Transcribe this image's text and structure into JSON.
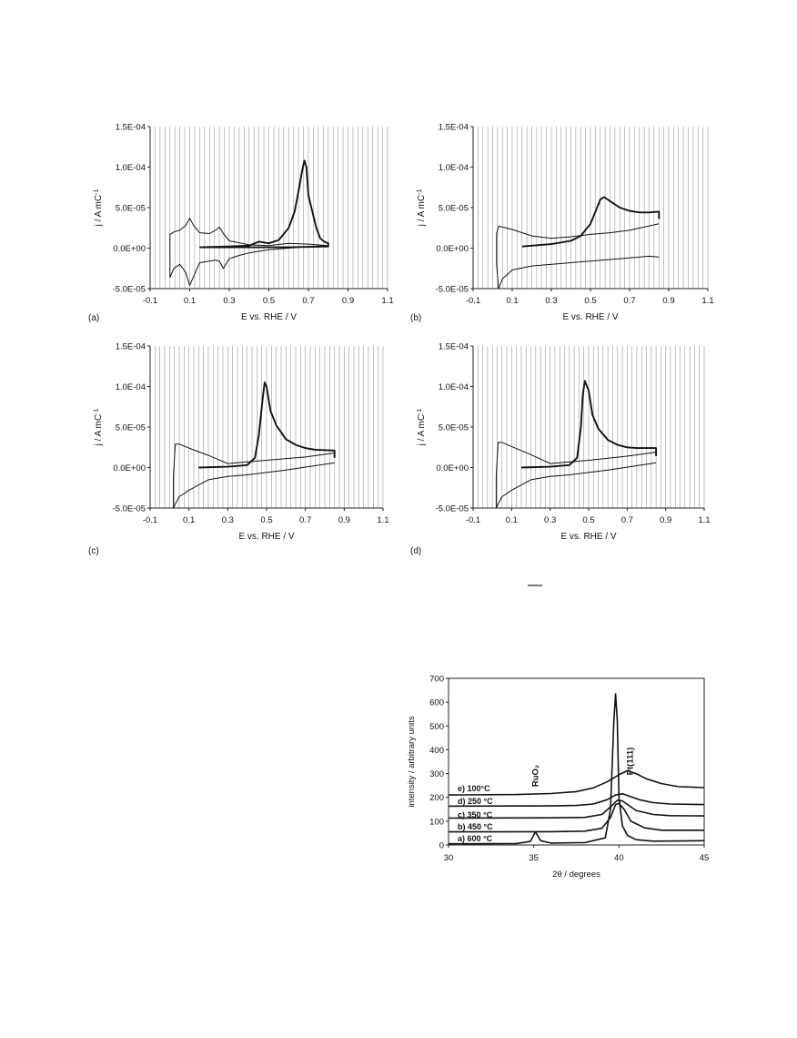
{
  "figure": {
    "overline": "—",
    "cv_panels": [
      {
        "label": "(a)",
        "xlabel": "E vs. RHE / V",
        "ylabel": "j / A mC",
        "ylabel_sup": "-1"
      },
      {
        "label": "(b)",
        "xlabel": "E vs. RHE / V",
        "ylabel": "j / A mC",
        "ylabel_sup": "-1"
      },
      {
        "label": "(c)",
        "xlabel": "E vs. RHE / V",
        "ylabel": "j / A mC",
        "ylabel_sup": "-1"
      },
      {
        "label": "(d)",
        "xlabel": "E vs. RHE / V",
        "ylabel": "j / A mC",
        "ylabel_sup": "-1"
      }
    ],
    "xrd": {
      "xlabel": "2θ / degrees",
      "ylabel": "intensity / arbitrary units",
      "peak_labels": [
        "RuO₂",
        "Pt(111)"
      ]
    }
  },
  "chart_data": [
    {
      "type": "line",
      "panel": "a",
      "xlabel": "E vs. RHE / V",
      "ylabel": "j / A mC-1",
      "xlim": [
        -0.1,
        1.1
      ],
      "ylim": [
        -5e-05,
        0.00015
      ],
      "xticks": [
        "-0.1",
        "0.1",
        "0.3",
        "0.5",
        "0.7",
        "0.9",
        "1.1"
      ],
      "yticks": [
        "-5.0E-05",
        "0.0E+00",
        "5.0E-05",
        "1.0E-04",
        "1.5E-04"
      ],
      "grid": "vertical",
      "series": [
        {
          "style": "thin",
          "x": [
            0.8,
            0.7,
            0.6,
            0.5,
            0.4,
            0.35,
            0.3,
            0.27,
            0.25,
            0.23,
            0.2,
            0.15,
            0.12,
            0.1,
            0.08,
            0.05,
            0.02,
            0.0,
            0.0,
            0.02,
            0.05,
            0.08,
            0.1,
            0.12,
            0.15,
            0.2,
            0.23,
            0.25,
            0.27,
            0.3,
            0.4,
            0.5,
            0.6,
            0.7,
            0.8
          ],
          "y": [
            3e-06,
            2e-06,
            0.0,
            -2e-06,
            -6e-06,
            -9e-06,
            -1.3e-05,
            -2.5e-05,
            -1.6e-05,
            -1.5e-05,
            -1.6e-05,
            -1.8e-05,
            -3.5e-05,
            -4.6e-05,
            -3e-05,
            -2e-05,
            -2.5e-05,
            -3.6e-05,
            1.7e-05,
            2e-05,
            2.2e-05,
            2.8e-05,
            3.7e-05,
            2.8e-05,
            1.9e-05,
            1.8e-05,
            2.2e-05,
            2.6e-05,
            1.8e-05,
            9e-06,
            4e-06,
            3e-06,
            6e-06,
            5e-06,
            3e-06
          ]
        },
        {
          "style": "bold",
          "x": [
            0.15,
            0.3,
            0.4,
            0.45,
            0.5,
            0.55,
            0.6,
            0.63,
            0.65,
            0.67,
            0.68,
            0.69,
            0.7,
            0.72,
            0.74,
            0.76,
            0.78,
            0.8,
            0.8,
            0.6,
            0.4,
            0.3,
            0.2,
            0.15
          ],
          "y": [
            1e-06,
            2e-06,
            3e-06,
            8e-06,
            6e-06,
            1e-05,
            2.5e-05,
            4.5e-05,
            7e-05,
            9.8e-05,
            0.000108,
            0.0001,
            6.5e-05,
            4.5e-05,
            2.5e-05,
            1.2e-05,
            8e-06,
            6e-06,
            2e-06,
            1e-06,
            1e-06,
            1e-06,
            1e-06,
            1e-06
          ]
        }
      ]
    },
    {
      "type": "line",
      "panel": "b",
      "xlabel": "E vs. RHE / V",
      "ylabel": "j / A mC-1",
      "xlim": [
        -0.1,
        1.1
      ],
      "ylim": [
        -5e-05,
        0.00015
      ],
      "xticks": [
        "-0.1",
        "0.1",
        "0.3",
        "0.5",
        "0.7",
        "0.9",
        "1.1"
      ],
      "yticks": [
        "-5.0E-05",
        "0.0E+00",
        "5.0E-05",
        "1.0E-04",
        "1.5E-04"
      ],
      "grid": "vertical",
      "series": [
        {
          "style": "thin",
          "x": [
            0.85,
            0.8,
            0.6,
            0.4,
            0.2,
            0.1,
            0.05,
            0.03,
            0.02,
            0.02,
            0.03,
            0.05,
            0.1,
            0.2,
            0.3,
            0.4,
            0.5,
            0.6,
            0.7,
            0.85
          ],
          "y": [
            -1.1e-05,
            -1e-05,
            -1.4e-05,
            -1.8e-05,
            -2.2e-05,
            -2.7e-05,
            -3.8e-05,
            -5e-05,
            -2e-05,
            1.8e-05,
            2.7e-05,
            2.6e-05,
            2.3e-05,
            1.5e-05,
            1.2e-05,
            1.4e-05,
            1.7e-05,
            1.9e-05,
            2.2e-05,
            3e-05
          ]
        },
        {
          "style": "bold",
          "x": [
            0.15,
            0.3,
            0.4,
            0.45,
            0.5,
            0.53,
            0.55,
            0.57,
            0.6,
            0.65,
            0.7,
            0.75,
            0.8,
            0.85,
            0.85
          ],
          "y": [
            2e-06,
            5e-06,
            9e-06,
            1.5e-05,
            3e-05,
            4.8e-05,
            6e-05,
            6.3e-05,
            5.8e-05,
            5e-05,
            4.6e-05,
            4.4e-05,
            4.4e-05,
            4.5e-05,
            3.6e-05
          ]
        }
      ]
    },
    {
      "type": "line",
      "panel": "c",
      "xlabel": "E vs. RHE / V",
      "ylabel": "j / A mC-1",
      "xlim": [
        -0.1,
        1.1
      ],
      "ylim": [
        -5e-05,
        0.00015
      ],
      "xticks": [
        "-0.1",
        "0.1",
        "0.3",
        "0.5",
        "0.7",
        "0.9",
        "1.1"
      ],
      "yticks": [
        "-5.0E-05",
        "0.0E+00",
        "5.0E-05",
        "1.0E-04",
        "1.5E-04"
      ],
      "grid": "vertical",
      "series": [
        {
          "style": "thin",
          "x": [
            0.85,
            0.8,
            0.6,
            0.4,
            0.3,
            0.2,
            0.1,
            0.05,
            0.03,
            0.02,
            0.02,
            0.03,
            0.05,
            0.1,
            0.2,
            0.3,
            0.5,
            0.7,
            0.85
          ],
          "y": [
            6e-06,
            4e-06,
            -3e-06,
            -9e-06,
            -1.1e-05,
            -1.5e-05,
            -2.8e-05,
            -3.6e-05,
            -4.5e-05,
            -5e-05,
            -1e-05,
            2.9e-05,
            2.9e-05,
            2.4e-05,
            1.5e-05,
            5e-06,
            9e-06,
            1.3e-05,
            1.8e-05
          ]
        },
        {
          "style": "bold",
          "x": [
            0.15,
            0.3,
            0.4,
            0.44,
            0.46,
            0.48,
            0.49,
            0.5,
            0.52,
            0.55,
            0.6,
            0.65,
            0.7,
            0.75,
            0.85,
            0.85
          ],
          "y": [
            0.0,
            1e-06,
            3e-06,
            1.2e-05,
            4e-05,
            8.5e-05,
            0.000105,
            0.0001,
            7e-05,
            5.2e-05,
            3.5e-05,
            2.8e-05,
            2.4e-05,
            2.2e-05,
            2.1e-05,
            1.2e-05
          ]
        }
      ]
    },
    {
      "type": "line",
      "panel": "d",
      "xlabel": "E vs. RHE / V",
      "ylabel": "j / A mC-1",
      "xlim": [
        -0.1,
        1.1
      ],
      "ylim": [
        -5e-05,
        0.00015
      ],
      "xticks": [
        "-0.1",
        "0.1",
        "0.3",
        "0.5",
        "0.7",
        "0.9",
        "1.1"
      ],
      "yticks": [
        "-5.0E-05",
        "0.0E+00",
        "5.0E-05",
        "1.0E-04",
        "1.5E-04"
      ],
      "grid": "vertical",
      "series": [
        {
          "style": "thin",
          "x": [
            0.85,
            0.8,
            0.6,
            0.4,
            0.3,
            0.2,
            0.1,
            0.05,
            0.03,
            0.02,
            0.02,
            0.03,
            0.05,
            0.1,
            0.2,
            0.3,
            0.5,
            0.7,
            0.85
          ],
          "y": [
            6e-06,
            4e-06,
            -3e-06,
            -9e-06,
            -1.1e-05,
            -1.5e-05,
            -2.8e-05,
            -3.6e-05,
            -4.5e-05,
            -5e-05,
            -1e-05,
            3.1e-05,
            3.1e-05,
            2.6e-05,
            1.6e-05,
            5e-06,
            9e-06,
            1.4e-05,
            1.9e-05
          ]
        },
        {
          "style": "bold",
          "x": [
            0.15,
            0.3,
            0.4,
            0.44,
            0.46,
            0.47,
            0.48,
            0.5,
            0.52,
            0.55,
            0.6,
            0.65,
            0.7,
            0.75,
            0.85,
            0.85
          ],
          "y": [
            0.0,
            1e-06,
            3e-06,
            1.2e-05,
            5e-05,
            9e-05,
            0.000107,
            9.5e-05,
            6.5e-05,
            4.8e-05,
            3.4e-05,
            2.8e-05,
            2.5e-05,
            2.4e-05,
            2.4e-05,
            1.4e-05
          ]
        }
      ]
    },
    {
      "type": "line",
      "panel": "xrd",
      "xlabel": "2θ / degrees",
      "ylabel": "intensity / arbitrary units",
      "xlim": [
        30,
        45
      ],
      "ylim": [
        0,
        700
      ],
      "xticks": [
        "30",
        "35",
        "40",
        "45"
      ],
      "yticks": [
        "0",
        "100",
        "200",
        "300",
        "400",
        "500",
        "600",
        "700"
      ],
      "annotations": [
        "RuO₂",
        "Pt(111)"
      ],
      "series": [
        {
          "name": "a) 600 °C",
          "x": [
            30,
            34,
            34.8,
            35.1,
            35.4,
            36,
            38,
            39.2,
            39.5,
            39.7,
            39.8,
            39.9,
            40,
            40.2,
            40.5,
            41,
            42,
            45
          ],
          "y": [
            5,
            6,
            15,
            55,
            18,
            8,
            10,
            30,
            150,
            520,
            635,
            520,
            200,
            80,
            40,
            22,
            16,
            18
          ]
        },
        {
          "name": "b) 450 °C",
          "x": [
            30,
            36,
            38,
            39,
            39.5,
            39.8,
            40,
            40.3,
            40.7,
            41.5,
            42.5,
            45
          ],
          "y": [
            55,
            56,
            58,
            70,
            115,
            170,
            175,
            150,
            100,
            72,
            62,
            62
          ]
        },
        {
          "name": "c) 350 °C",
          "x": [
            30,
            36,
            38,
            39,
            39.5,
            39.9,
            40.2,
            40.6,
            41,
            42,
            43,
            45
          ],
          "y": [
            113,
            114,
            116,
            128,
            160,
            188,
            185,
            165,
            145,
            128,
            123,
            122
          ]
        },
        {
          "name": "d) 250 °C",
          "x": [
            30,
            36,
            37.5,
            38.5,
            39.3,
            39.8,
            40.2,
            40.6,
            41.2,
            42,
            43,
            45
          ],
          "y": [
            163,
            164,
            166,
            172,
            190,
            210,
            215,
            205,
            190,
            178,
            172,
            170
          ]
        },
        {
          "name": "e) 100°C",
          "x": [
            30,
            34,
            36,
            37.5,
            38.5,
            39.3,
            40,
            40.5,
            41,
            41.6,
            42.5,
            43.5,
            45
          ],
          "y": [
            210,
            212,
            216,
            224,
            240,
            265,
            295,
            312,
            300,
            278,
            258,
            245,
            241
          ]
        }
      ]
    }
  ]
}
